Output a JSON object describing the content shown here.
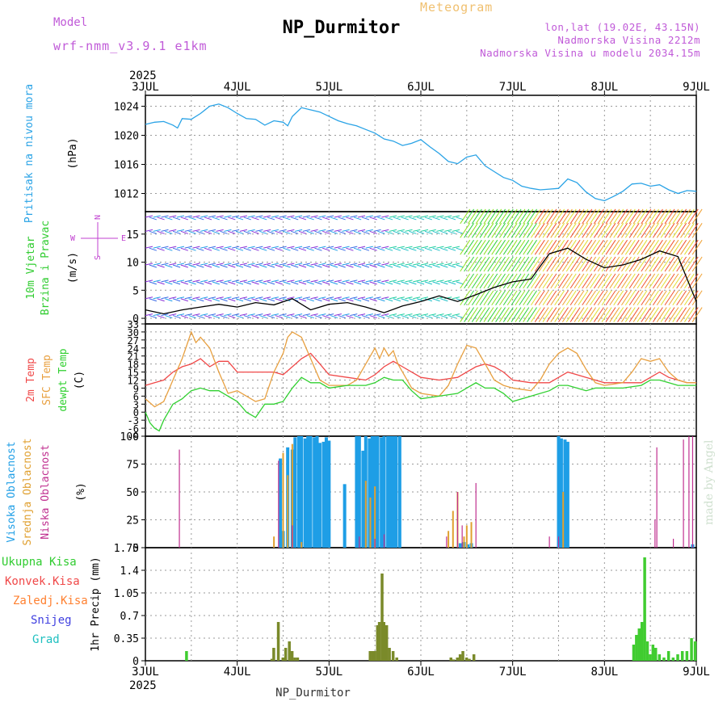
{
  "header": {
    "title": "NP_Durmitor",
    "meteogram_label": "Meteogram",
    "model_label": "Model",
    "model_name": "wrf-nmm_v3.9.1  e1km",
    "lonlat": "lon,lat (19.02E, 43.15N)",
    "elevation": "Nadmorska Visina 2212m",
    "model_elevation": "Nadmorska Visina u modelu 2034.15m",
    "footer_station": "NP_Durmitor",
    "credit": "made by Angel"
  },
  "colors": {
    "pressure": "#2aa3e6",
    "temp2m": "#f04848",
    "sfc_temp": "#e8a040",
    "dewpoint": "#30d030",
    "high_cloud": "#1e9ee6",
    "mid_cloud": "#e0a030",
    "low_cloud": "#c03090",
    "total_precip": "#40cc30",
    "conv_precip": "#f03838",
    "frozen": "#ff8030",
    "snow": "#4040e0",
    "hail": "#20c0c0",
    "mixed_precip": "#7a8a2a",
    "grid": "#9a9a9a"
  },
  "chart_data": [
    {
      "type": "line",
      "panel": "pressure",
      "ylabel": "(hPa)",
      "side_labels": [
        {
          "text": "Pritisak na nivou mora",
          "color": "#2aa3e6"
        }
      ],
      "yticks": [
        1012,
        1016,
        1020,
        1024
      ],
      "ylim": [
        1009.5,
        1025.5
      ],
      "x_day_ticks": [
        "3JUL",
        "4JUL",
        "5JUL",
        "6JUL",
        "7JUL",
        "8JUL",
        "9JUL"
      ],
      "year": "2025",
      "series": [
        {
          "x": [
            0,
            0.1,
            0.2,
            0.3,
            0.35,
            0.4,
            0.5,
            0.6,
            0.7,
            0.8,
            0.9,
            1.0,
            1.1,
            1.2,
            1.3,
            1.4,
            1.5,
            1.55,
            1.6,
            1.7,
            1.8,
            1.9,
            2.0,
            2.1,
            2.2,
            2.3,
            2.4,
            2.5,
            2.6,
            2.7,
            2.8,
            2.9,
            3.0,
            3.1,
            3.2,
            3.3,
            3.4,
            3.5,
            3.6,
            3.7,
            3.8,
            3.9,
            4.0,
            4.1,
            4.2,
            4.3,
            4.4,
            4.5,
            4.6,
            4.7,
            4.8,
            4.9,
            5.0,
            5.1,
            5.2,
            5.3,
            5.4,
            5.5,
            5.6,
            5.7,
            5.8,
            5.9,
            6.0
          ],
          "y": [
            1021.5,
            1021.8,
            1021.9,
            1021.4,
            1021.0,
            1022.3,
            1022.2,
            1023.0,
            1024.0,
            1024.3,
            1023.8,
            1023.0,
            1022.3,
            1022.2,
            1021.4,
            1022.0,
            1021.8,
            1021.3,
            1022.6,
            1023.8,
            1023.5,
            1023.2,
            1022.6,
            1022.0,
            1021.6,
            1021.3,
            1020.8,
            1020.3,
            1019.5,
            1019.2,
            1018.6,
            1018.9,
            1019.4,
            1018.4,
            1017.5,
            1016.4,
            1016.1,
            1017.0,
            1017.3,
            1015.8,
            1015.0,
            1014.2,
            1013.8,
            1013.0,
            1012.7,
            1012.5,
            1012.6,
            1012.7,
            1014.0,
            1013.5,
            1012.2,
            1011.3,
            1011.0,
            1011.6,
            1012.3,
            1013.3,
            1013.4,
            1013.0,
            1013.2,
            1012.5,
            1012.0,
            1012.4,
            1012.3
          ]
        }
      ]
    },
    {
      "type": "line",
      "panel": "wind",
      "ylabel": "(m/s)",
      "side_labels": [
        {
          "text": "10m Vjetar",
          "color": "#30cc30"
        },
        {
          "text": "Brzina i Pravac",
          "color": "#30cc30"
        }
      ],
      "compass_legend": {
        "west": "W",
        "east": "E",
        "north": "N",
        "south": "S"
      },
      "yticks": [
        0,
        5,
        10,
        15
      ],
      "ylim": [
        -1,
        19
      ],
      "series": [
        {
          "name": "speed",
          "x": [
            0,
            0.2,
            0.4,
            0.6,
            0.8,
            1.0,
            1.2,
            1.4,
            1.6,
            1.8,
            2.0,
            2.2,
            2.4,
            2.6,
            2.8,
            3.0,
            3.2,
            3.4,
            3.6,
            3.8,
            4.0,
            4.2,
            4.4,
            4.6,
            4.8,
            5.0,
            5.2,
            5.4,
            5.6,
            5.8,
            6.0
          ],
          "y": [
            1.5,
            0.8,
            1.5,
            2.0,
            2.5,
            2.0,
            2.8,
            2.4,
            3.5,
            1.5,
            2.5,
            2.8,
            2.0,
            1.0,
            2.2,
            3.0,
            4.0,
            3.0,
            4.2,
            5.5,
            6.5,
            7.0,
            11.5,
            12.5,
            10.5,
            9.0,
            9.5,
            10.5,
            12.0,
            11.0,
            3.0
          ]
        }
      ]
    },
    {
      "type": "line",
      "panel": "temperature",
      "ylabel": "(C)",
      "side_labels": [
        {
          "text": "2m Temp",
          "color": "#f04848"
        },
        {
          "text": "SFC Temp",
          "color": "#e8a040"
        },
        {
          "text": "dewpt Temp",
          "color": "#30d030"
        }
      ],
      "yticks": [
        -9,
        -6,
        -3,
        0,
        3,
        6,
        9,
        12,
        15,
        18,
        21,
        24,
        27,
        30,
        33
      ],
      "ylim": [
        -9,
        33
      ],
      "series": [
        {
          "name": "2m Temp",
          "x": [
            0,
            0.1,
            0.2,
            0.3,
            0.4,
            0.5,
            0.6,
            0.7,
            0.8,
            0.9,
            1.0,
            1.2,
            1.4,
            1.5,
            1.6,
            1.7,
            1.8,
            1.9,
            2.0,
            2.2,
            2.4,
            2.5,
            2.6,
            2.7,
            2.8,
            2.9,
            3.0,
            3.2,
            3.4,
            3.5,
            3.6,
            3.7,
            3.8,
            3.9,
            4.0,
            4.2,
            4.4,
            4.5,
            4.6,
            4.7,
            4.8,
            4.9,
            5.0,
            5.2,
            5.4,
            5.5,
            5.6,
            5.7,
            5.8,
            5.9,
            6.0
          ],
          "y": [
            10,
            11,
            12,
            15,
            17,
            18,
            20,
            17,
            19,
            19,
            15,
            15,
            15,
            14,
            17,
            20,
            22,
            18,
            14,
            13,
            12,
            14,
            17,
            19,
            17,
            15,
            13,
            12,
            13,
            15,
            17,
            18,
            17,
            15,
            12,
            11,
            11,
            13,
            15,
            14,
            13,
            12,
            11,
            11,
            11,
            13,
            15,
            13,
            12,
            11,
            11
          ]
        },
        {
          "name": "SFC Temp",
          "x": [
            0,
            0.1,
            0.2,
            0.3,
            0.4,
            0.45,
            0.5,
            0.55,
            0.6,
            0.7,
            0.8,
            0.9,
            1.0,
            1.2,
            1.3,
            1.4,
            1.5,
            1.55,
            1.6,
            1.7,
            1.8,
            1.9,
            2.0,
            2.2,
            2.3,
            2.4,
            2.5,
            2.55,
            2.6,
            2.65,
            2.7,
            2.75,
            2.8,
            2.9,
            3.0,
            3.2,
            3.3,
            3.4,
            3.5,
            3.6,
            3.7,
            3.8,
            3.9,
            4.0,
            4.2,
            4.3,
            4.4,
            4.5,
            4.6,
            4.7,
            4.8,
            4.9,
            5.0,
            5.2,
            5.3,
            5.4,
            5.5,
            5.6,
            5.7,
            5.8,
            5.9,
            6.0
          ],
          "y": [
            5,
            2,
            4,
            12,
            20,
            25,
            30,
            26,
            28,
            24,
            15,
            7,
            8,
            4,
            5,
            15,
            22,
            28,
            30,
            28,
            20,
            12,
            10,
            10,
            12,
            18,
            24,
            20,
            24,
            21,
            23,
            18,
            15,
            9,
            7,
            6,
            10,
            18,
            25,
            24,
            18,
            12,
            10,
            9,
            8,
            12,
            18,
            22,
            24,
            22,
            16,
            11,
            10,
            11,
            15,
            20,
            19,
            20,
            15,
            12,
            11,
            11
          ]
        },
        {
          "name": "dewpt Temp",
          "x": [
            0,
            0.05,
            0.1,
            0.15,
            0.2,
            0.3,
            0.4,
            0.5,
            0.6,
            0.7,
            0.8,
            0.9,
            1.0,
            1.1,
            1.2,
            1.3,
            1.4,
            1.5,
            1.6,
            1.7,
            1.8,
            1.9,
            2.0,
            2.2,
            2.4,
            2.5,
            2.6,
            2.7,
            2.8,
            2.9,
            3.0,
            3.2,
            3.4,
            3.5,
            3.6,
            3.7,
            3.8,
            3.9,
            4.0,
            4.2,
            4.4,
            4.5,
            4.6,
            4.7,
            4.8,
            4.9,
            5.0,
            5.2,
            5.4,
            5.5,
            5.6,
            5.7,
            5.8,
            5.9,
            6.0
          ],
          "y": [
            0,
            -4,
            -6,
            -7,
            -3,
            3,
            5,
            8,
            9,
            8,
            8,
            6,
            4,
            0,
            -2,
            3,
            3,
            4,
            9,
            13,
            11,
            11,
            9,
            10,
            10,
            11,
            13,
            12,
            12,
            8,
            5,
            6,
            7,
            9,
            11,
            9,
            9,
            7,
            4,
            6,
            8,
            10,
            10,
            9,
            8,
            9,
            9,
            9,
            10,
            12,
            12,
            11,
            10,
            10,
            10
          ]
        }
      ]
    },
    {
      "type": "bar",
      "panel": "cloud",
      "ylabel": "(%)",
      "side_labels": [
        {
          "text": "Visoka Oblacnost",
          "color": "#1e9ee6"
        },
        {
          "text": "Srednja Oblacnost",
          "color": "#e0a030"
        },
        {
          "text": "Niska Oblacnost",
          "color": "#c03090"
        }
      ],
      "yticks": [
        0,
        25,
        50,
        75,
        100
      ],
      "ylim": [
        0,
        100
      ],
      "series": [
        {
          "name": "Visoka Oblacnost",
          "x": [
            1.47,
            1.5,
            1.55,
            1.6,
            1.63,
            1.67,
            1.7,
            1.74,
            1.77,
            1.8,
            1.84,
            1.87,
            1.9,
            1.94,
            1.97,
            2.0,
            2.17,
            2.3,
            2.33,
            2.37,
            2.4,
            2.44,
            2.47,
            2.5,
            2.53,
            2.57,
            2.6,
            2.64,
            2.67,
            2.7,
            2.73,
            2.77,
            3.43,
            3.47,
            3.51,
            3.55,
            4.5,
            4.53,
            4.57,
            4.6,
            5.96
          ],
          "values": [
            80,
            15,
            90,
            88,
            99,
            100,
            100,
            98,
            100,
            100,
            99,
            100,
            94,
            95,
            99,
            96,
            57,
            100,
            100,
            87,
            100,
            98,
            100,
            100,
            100,
            99,
            100,
            100,
            100,
            100,
            100,
            100,
            4,
            5,
            3,
            4,
            100,
            98,
            97,
            95,
            3
          ]
        },
        {
          "name": "Srednja Oblacnost",
          "x": [
            1.4,
            1.5,
            1.55,
            1.6,
            1.7,
            2.4,
            2.45,
            2.5,
            3.3,
            3.35,
            3.4,
            3.47,
            3.5,
            3.55,
            4.55
          ],
          "values": [
            10,
            85,
            65,
            93,
            5,
            60,
            45,
            55,
            15,
            33,
            50,
            10,
            20,
            23,
            50
          ]
        },
        {
          "name": "Niska Oblacnost",
          "x": [
            0.37,
            1.45,
            1.6,
            2.33,
            2.5,
            2.6,
            3.28,
            3.4,
            3.45,
            3.6,
            4.4,
            4.5,
            5.55,
            5.57,
            5.75,
            5.86,
            5.92,
            5.96
          ],
          "values": [
            88,
            78,
            20,
            10,
            8,
            12,
            10,
            50,
            20,
            58,
            10,
            10,
            25,
            90,
            8,
            97,
            100,
            100
          ]
        }
      ]
    },
    {
      "type": "bar",
      "panel": "precipitation",
      "ylabel": "1hr Precip (mm)",
      "side_labels": [
        {
          "text": "Ukupna Kisa",
          "color": "#30cc30"
        },
        {
          "text": "Konvek.Kisa",
          "color": "#f04848"
        },
        {
          "text": "Zaledj.Kisa",
          "color": "#ff8030"
        },
        {
          "text": "Snijeg",
          "color": "#4040e0"
        },
        {
          "text": "Grad",
          "color": "#20c0c0"
        }
      ],
      "yticks": [
        "0",
        "0.35",
        "0.7",
        "1.05",
        "1.4",
        "1.75"
      ],
      "ylim": [
        0,
        1.75
      ],
      "x_day_ticks": [
        "3JUL",
        "4JUL",
        "5JUL",
        "6JUL",
        "7JUL",
        "8JUL",
        "9JUL"
      ],
      "year": "2025",
      "series": [
        {
          "name": "Ukupna Kisa",
          "x": [
            0.45,
            5.32,
            5.35,
            5.38,
            5.41,
            5.44,
            5.47,
            5.5,
            5.53,
            5.56,
            5.6,
            5.65,
            5.7,
            5.75,
            5.8,
            5.85,
            5.9,
            5.95,
            5.99
          ],
          "values": [
            0.15,
            0.25,
            0.4,
            0.5,
            0.6,
            1.6,
            0.3,
            0.1,
            0.25,
            0.2,
            0.1,
            0.05,
            0.15,
            0.05,
            0.1,
            0.15,
            0.15,
            0.35,
            0.3
          ]
        },
        {
          "name": "mixed",
          "x": [
            1.38,
            1.4,
            1.45,
            1.5,
            1.53,
            1.57,
            1.6,
            1.63,
            1.66,
            2.45,
            2.48,
            2.5,
            2.53,
            2.55,
            2.58,
            2.6,
            2.63,
            2.66,
            2.7,
            2.74,
            3.33,
            3.36,
            3.4,
            3.43,
            3.46,
            3.5,
            3.53,
            3.58
          ],
          "values": [
            0.03,
            0.2,
            0.6,
            0.05,
            0.2,
            0.3,
            0.15,
            0.05,
            0.05,
            0.15,
            0.15,
            0.15,
            0.55,
            0.6,
            1.35,
            0.6,
            0.55,
            0.2,
            0.15,
            0.05,
            0.05,
            0.02,
            0.05,
            0.1,
            0.15,
            0.05,
            0.03,
            0.1
          ]
        }
      ]
    }
  ]
}
